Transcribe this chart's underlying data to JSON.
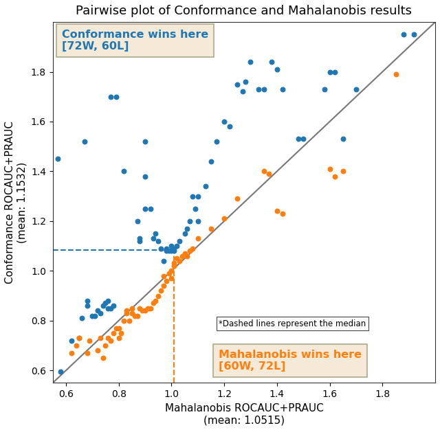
{
  "title": "Pairwise plot of Conformance and Mahalanobis results",
  "xlabel": "Mahalanobis ROCAUC+PRAUC\n(mean: 1.0515)",
  "ylabel": "Conformance ROCAUC+PRAUC\n(mean: 1.1532)",
  "xlim": [
    0.55,
    2.0
  ],
  "ylim": [
    0.55,
    2.0
  ],
  "median_x": 1.01,
  "median_y": 1.085,
  "blue_color": "#1f77b4",
  "orange_color": "#ff7f0e",
  "diag_color": "#777777",
  "blue_points": [
    [
      0.58,
      0.595
    ],
    [
      0.57,
      1.45
    ],
    [
      0.67,
      1.52
    ],
    [
      0.62,
      0.72
    ],
    [
      0.65,
      0.73
    ],
    [
      0.66,
      0.81
    ],
    [
      0.68,
      0.86
    ],
    [
      0.68,
      0.88
    ],
    [
      0.7,
      0.82
    ],
    [
      0.71,
      0.82
    ],
    [
      0.72,
      0.84
    ],
    [
      0.73,
      0.83
    ],
    [
      0.74,
      0.86
    ],
    [
      0.75,
      0.87
    ],
    [
      0.76,
      0.85
    ],
    [
      0.76,
      0.88
    ],
    [
      0.77,
      0.85
    ],
    [
      0.78,
      0.86
    ],
    [
      0.77,
      1.7
    ],
    [
      0.79,
      1.7
    ],
    [
      0.82,
      1.4
    ],
    [
      0.87,
      1.2
    ],
    [
      0.88,
      1.13
    ],
    [
      0.88,
      1.12
    ],
    [
      0.9,
      1.25
    ],
    [
      0.9,
      1.52
    ],
    [
      0.9,
      1.38
    ],
    [
      0.92,
      1.25
    ],
    [
      0.93,
      1.13
    ],
    [
      0.94,
      1.15
    ],
    [
      0.95,
      1.12
    ],
    [
      0.96,
      1.09
    ],
    [
      0.97,
      1.04
    ],
    [
      0.98,
      1.08
    ],
    [
      0.98,
      1.09
    ],
    [
      0.99,
      1.08
    ],
    [
      1.0,
      1.1
    ],
    [
      1.0,
      1.08
    ],
    [
      1.01,
      1.09
    ],
    [
      1.01,
      1.08
    ],
    [
      1.02,
      1.1
    ],
    [
      1.03,
      1.12
    ],
    [
      1.05,
      1.15
    ],
    [
      1.06,
      1.17
    ],
    [
      1.07,
      1.2
    ],
    [
      1.08,
      1.3
    ],
    [
      1.09,
      1.25
    ],
    [
      1.1,
      1.3
    ],
    [
      1.1,
      1.2
    ],
    [
      1.13,
      1.34
    ],
    [
      1.15,
      1.44
    ],
    [
      1.17,
      1.52
    ],
    [
      1.2,
      1.6
    ],
    [
      1.22,
      1.58
    ],
    [
      1.25,
      1.75
    ],
    [
      1.27,
      1.72
    ],
    [
      1.28,
      1.76
    ],
    [
      1.3,
      1.84
    ],
    [
      1.33,
      1.73
    ],
    [
      1.35,
      1.73
    ],
    [
      1.38,
      1.84
    ],
    [
      1.4,
      1.81
    ],
    [
      1.42,
      1.73
    ],
    [
      1.48,
      1.53
    ],
    [
      1.5,
      1.53
    ],
    [
      1.58,
      1.73
    ],
    [
      1.6,
      1.8
    ],
    [
      1.62,
      1.8
    ],
    [
      1.65,
      1.53
    ],
    [
      1.7,
      1.73
    ],
    [
      1.88,
      1.95
    ],
    [
      1.92,
      1.95
    ]
  ],
  "orange_points": [
    [
      0.62,
      0.67
    ],
    [
      0.64,
      0.7
    ],
    [
      0.65,
      0.73
    ],
    [
      0.68,
      0.67
    ],
    [
      0.69,
      0.72
    ],
    [
      0.72,
      0.68
    ],
    [
      0.73,
      0.73
    ],
    [
      0.74,
      0.65
    ],
    [
      0.75,
      0.7
    ],
    [
      0.76,
      0.73
    ],
    [
      0.77,
      0.72
    ],
    [
      0.78,
      0.75
    ],
    [
      0.79,
      0.77
    ],
    [
      0.8,
      0.73
    ],
    [
      0.8,
      0.77
    ],
    [
      0.81,
      0.75
    ],
    [
      0.82,
      0.8
    ],
    [
      0.83,
      0.83
    ],
    [
      0.83,
      0.84
    ],
    [
      0.84,
      0.8
    ],
    [
      0.85,
      0.83
    ],
    [
      0.85,
      0.85
    ],
    [
      0.86,
      0.82
    ],
    [
      0.87,
      0.82
    ],
    [
      0.88,
      0.85
    ],
    [
      0.89,
      0.84
    ],
    [
      0.9,
      0.84
    ],
    [
      0.91,
      0.85
    ],
    [
      0.92,
      0.85
    ],
    [
      0.93,
      0.87
    ],
    [
      0.94,
      0.88
    ],
    [
      0.95,
      0.9
    ],
    [
      0.96,
      0.92
    ],
    [
      0.97,
      0.94
    ],
    [
      0.97,
      0.98
    ],
    [
      0.98,
      0.96
    ],
    [
      0.99,
      0.99
    ],
    [
      1.0,
      0.97
    ],
    [
      1.0,
      1.0
    ],
    [
      1.01,
      1.02
    ],
    [
      1.01,
      1.03
    ],
    [
      1.02,
      1.05
    ],
    [
      1.03,
      1.04
    ],
    [
      1.04,
      1.06
    ],
    [
      1.05,
      1.07
    ],
    [
      1.06,
      1.06
    ],
    [
      1.07,
      1.08
    ],
    [
      1.08,
      1.09
    ],
    [
      1.1,
      1.13
    ],
    [
      1.15,
      1.17
    ],
    [
      1.2,
      1.21
    ],
    [
      1.25,
      1.29
    ],
    [
      1.35,
      1.4
    ],
    [
      1.37,
      1.39
    ],
    [
      1.4,
      1.24
    ],
    [
      1.42,
      1.23
    ],
    [
      1.6,
      1.41
    ],
    [
      1.62,
      1.38
    ],
    [
      1.65,
      1.4
    ],
    [
      1.85,
      1.79
    ]
  ],
  "annotation_blue_text": "Conformance wins here\n[72W, 60L]",
  "annotation_orange_text": "Mahalanobis wins here\n[60W, 72L]",
  "annotation_median_text": "*Dashed lines represent the median",
  "bg_color": "#ffffff",
  "annotation_bg": "#f5ead7",
  "annotation_border": "#aaa88a"
}
